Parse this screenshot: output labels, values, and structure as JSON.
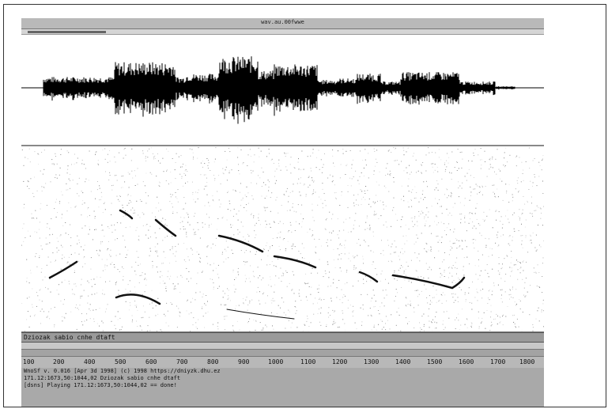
{
  "window": {
    "title": "wav.au.00fwwe"
  },
  "progress": {
    "fraction": 0.15
  },
  "spectrogram": {
    "label": "Dziozak sabio cnhe dtaft"
  },
  "ruler": {
    "ticks": [
      "100",
      "200",
      "400",
      "500",
      "600",
      "700",
      "800",
      "900",
      "1000",
      "1100",
      "1200",
      "1300",
      "1400",
      "1500",
      "1600",
      "1700",
      "1800"
    ]
  },
  "console": {
    "lines": [
      "WnoSf v. 0.016 [Apr 3d 1998]  (c) 1998 https://dniyzk.dhu.ez",
      "171.12:1673,50:1044,02 Dziozak sabio cnhe dtaft",
      "[dsns] Playing 171.12:1673,50:1044,02 == done!"
    ]
  },
  "colors": {
    "titlebar": "#b9b9b9",
    "waveform": "#000000",
    "console_bg": "#a9a9a9"
  }
}
